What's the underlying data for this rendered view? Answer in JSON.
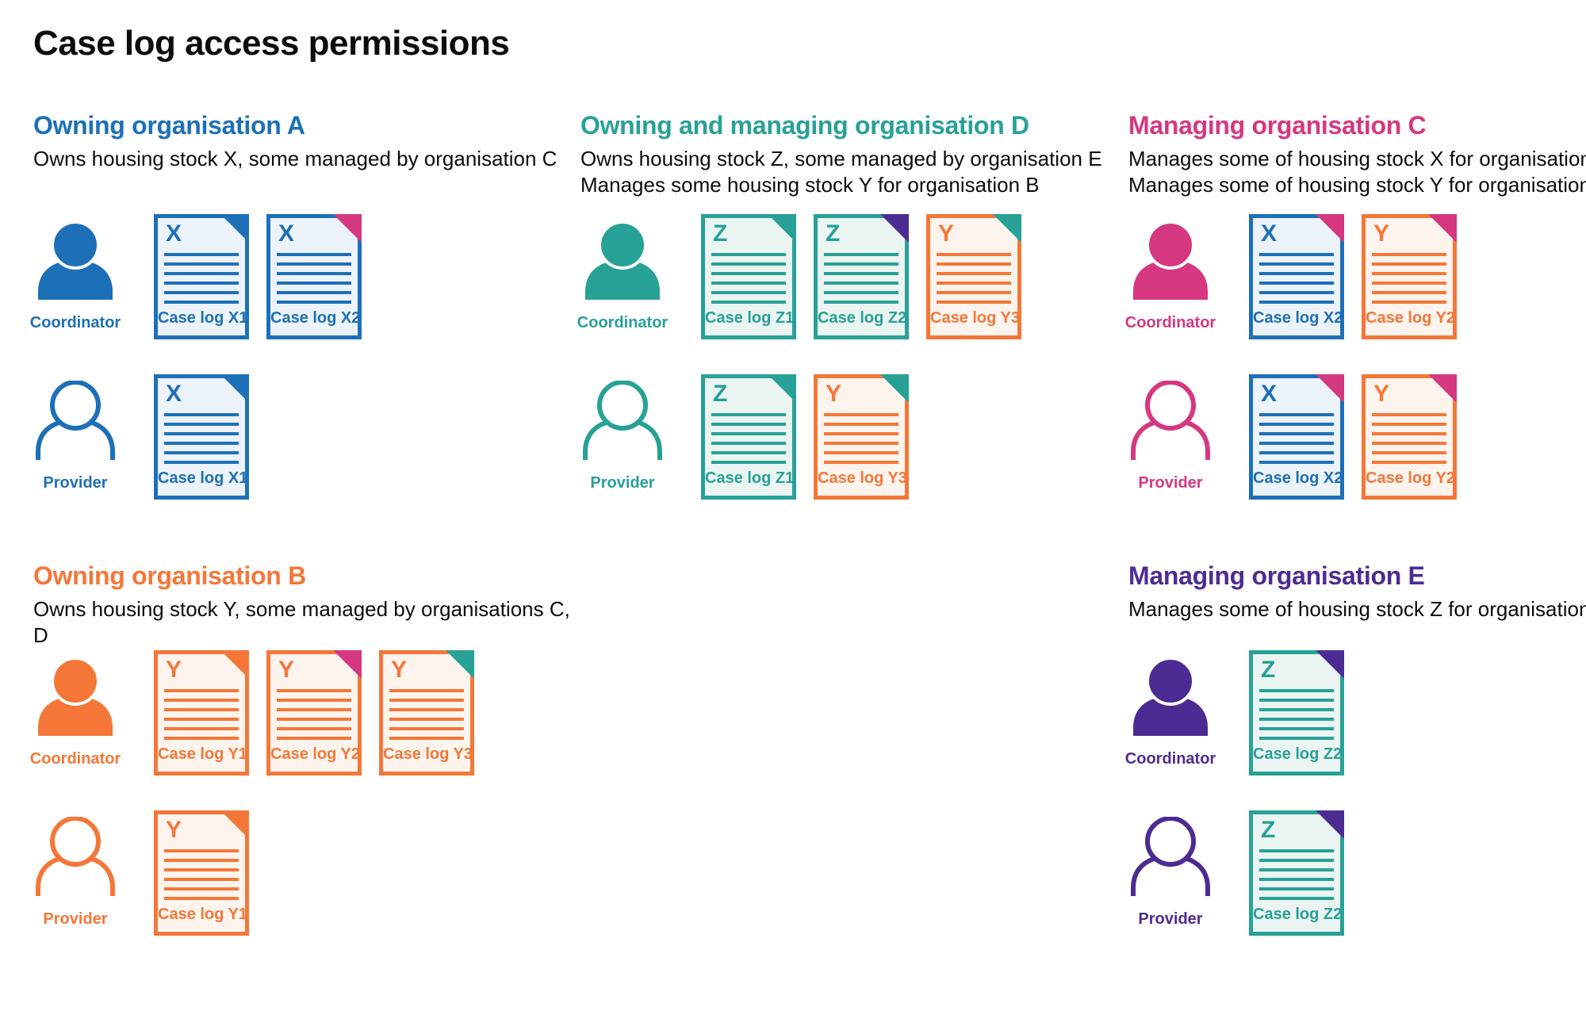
{
  "title": "Case log access permissions",
  "palette": {
    "blue": "#1d70b8",
    "teal": "#28a197",
    "orange": "#f47738",
    "pink": "#d53880",
    "purple": "#4c2c92",
    "text": "#0b0c0c",
    "blue_tint": "#edf3fa",
    "teal_tint": "#eaf5f2",
    "orange_tint": "#fdf4ee"
  },
  "sections": [
    {
      "id": "owning-organisation-a",
      "heading": "Owning organisation A",
      "color": "blue",
      "description": [
        "Owns housing stock X, some managed by organisation C"
      ],
      "rows": [
        {
          "role": "Coordinator",
          "person": "filled",
          "docs": [
            {
              "letter": "X",
              "label": "Case log X1",
              "color": "blue",
              "fold": "blue"
            },
            {
              "letter": "X",
              "label": "Case log X2",
              "color": "blue",
              "fold": "pink"
            }
          ]
        },
        {
          "role": "Provider",
          "person": "outline",
          "docs": [
            {
              "letter": "X",
              "label": "Case log X1",
              "color": "blue",
              "fold": "blue"
            }
          ]
        }
      ]
    },
    {
      "id": "owning-and-managing-organisation-d",
      "heading": "Owning and managing organisation D",
      "color": "teal",
      "description": [
        "Owns housing stock Z, some managed by organisation E",
        "Manages some housing stock Y for organisation B"
      ],
      "rows": [
        {
          "role": "Coordinator",
          "person": "filled",
          "docs": [
            {
              "letter": "Z",
              "label": "Case log Z1",
              "color": "teal",
              "fold": "teal"
            },
            {
              "letter": "Z",
              "label": "Case log Z2",
              "color": "teal",
              "fold": "purple"
            },
            {
              "letter": "Y",
              "label": "Case log Y3",
              "color": "orange",
              "fold": "teal"
            }
          ]
        },
        {
          "role": "Provider",
          "person": "outline",
          "docs": [
            {
              "letter": "Z",
              "label": "Case log Z1",
              "color": "teal",
              "fold": "teal"
            },
            {
              "letter": "Y",
              "label": "Case log Y3",
              "color": "orange",
              "fold": "teal"
            }
          ]
        }
      ]
    },
    {
      "id": "managing-organisation-c",
      "heading": "Managing organisation C",
      "color": "pink",
      "description": [
        "Manages some of housing stock X for organisation A",
        "Manages some of housing stock Y for organisation B"
      ],
      "rows": [
        {
          "role": "Coordinator",
          "person": "filled",
          "docs": [
            {
              "letter": "X",
              "label": "Case log X2",
              "color": "blue",
              "fold": "pink"
            },
            {
              "letter": "Y",
              "label": "Case log Y2",
              "color": "orange",
              "fold": "pink"
            }
          ]
        },
        {
          "role": "Provider",
          "person": "outline",
          "docs": [
            {
              "letter": "X",
              "label": "Case log X2",
              "color": "blue",
              "fold": "pink"
            },
            {
              "letter": "Y",
              "label": "Case log Y2",
              "color": "orange",
              "fold": "pink"
            }
          ]
        }
      ]
    },
    {
      "id": "owning-organisation-b",
      "heading": "Owning organisation B",
      "color": "orange",
      "description": [
        "Owns housing stock Y, some managed by organisations C, D"
      ],
      "rows": [
        {
          "role": "Coordinator",
          "person": "filled",
          "docs": [
            {
              "letter": "Y",
              "label": "Case log Y1",
              "color": "orange",
              "fold": "orange"
            },
            {
              "letter": "Y",
              "label": "Case log Y2",
              "color": "orange",
              "fold": "pink"
            },
            {
              "letter": "Y",
              "label": "Case log Y3",
              "color": "orange",
              "fold": "teal"
            }
          ]
        },
        {
          "role": "Provider",
          "person": "outline",
          "docs": [
            {
              "letter": "Y",
              "label": "Case log Y1",
              "color": "orange",
              "fold": "orange"
            }
          ]
        }
      ]
    },
    {
      "id": "managing-organisation-e",
      "heading": "Managing organisation E",
      "color": "purple",
      "description": [
        "Manages some of housing stock Z for organisation D"
      ],
      "rows": [
        {
          "role": "Coordinator",
          "person": "filled",
          "docs": [
            {
              "letter": "Z",
              "label": "Case log Z2",
              "color": "teal",
              "fold": "purple"
            }
          ]
        },
        {
          "role": "Provider",
          "person": "outline",
          "docs": [
            {
              "letter": "Z",
              "label": "Case log Z2",
              "color": "teal",
              "fold": "purple"
            }
          ]
        }
      ]
    }
  ]
}
